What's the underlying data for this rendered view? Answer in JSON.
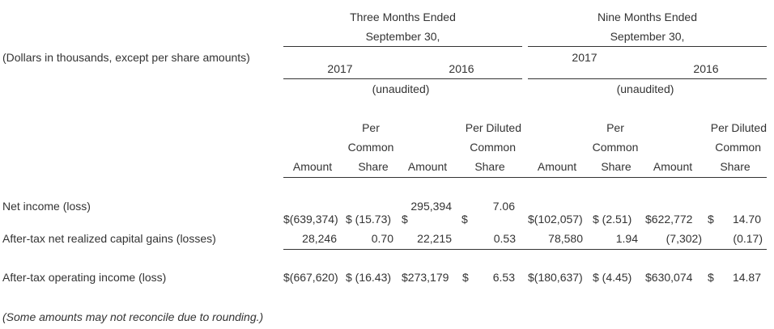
{
  "header": {
    "three_months_line1": "Three Months Ended",
    "three_months_line2": "September 30,",
    "nine_months_line1": "Nine Months Ended",
    "nine_months_line2": "September 30,",
    "units_label": "(Dollars in thousands, except per share amounts)",
    "year_2017_a": "2017",
    "year_2016_a": "2016",
    "year_2017_b": "2017",
    "year_2016_b": "2016",
    "unaudited_a": "(unaudited)",
    "unaudited_b": "(unaudited)"
  },
  "columns": {
    "per_a": "Per",
    "common_a": "Common",
    "per_diluted_a": "Per Diluted",
    "common_b": "Common",
    "per_b": "Per",
    "common_c": "Common",
    "per_diluted_b": "Per Diluted",
    "common_d": "Common",
    "amount_1": "Amount",
    "share_1": "Share",
    "amount_2": "Amount",
    "share_2": "Share",
    "amount_3": "Amount",
    "share_3": "Share",
    "amount_4": "Amount",
    "share_4": "Share"
  },
  "rows": {
    "net_income": {
      "label": "Net income (loss)",
      "q2017_amount": "$(639,374)",
      "q2017_share": "$ (15.73)",
      "q2016_amount_top": "295,394",
      "q2016_amount_dollar": "$",
      "q2016_share_top": "7.06",
      "q2016_share_dollar": "$",
      "n2017_amount": "$(102,057)",
      "n2017_share": "$ (2.51)",
      "n2016_amount": "$622,772",
      "n2016_share_dollar": "$",
      "n2016_share": "14.70"
    },
    "capital_gains": {
      "label": "After-tax net realized capital gains (losses)",
      "q2017_amount": "28,246",
      "q2017_share": "0.70",
      "q2016_amount": "22,215",
      "q2016_share": "0.53",
      "n2017_amount": "78,580",
      "n2017_share": "1.94",
      "n2016_amount": "(7,302)",
      "n2016_share": "(0.17)"
    },
    "operating_income": {
      "label": "After-tax operating income (loss)",
      "q2017_amount": "$(667,620)",
      "q2017_share": "$ (16.43)",
      "q2016_amount": "$273,179",
      "q2016_share_dollar": "$",
      "q2016_share": "6.53",
      "n2017_amount": "$(180,637)",
      "n2017_share": "$ (4.45)",
      "n2016_amount": "$630,074",
      "n2016_share_dollar": "$",
      "n2016_share": "14.87"
    }
  },
  "footnote": "(Some amounts may not reconcile due to rounding.)"
}
